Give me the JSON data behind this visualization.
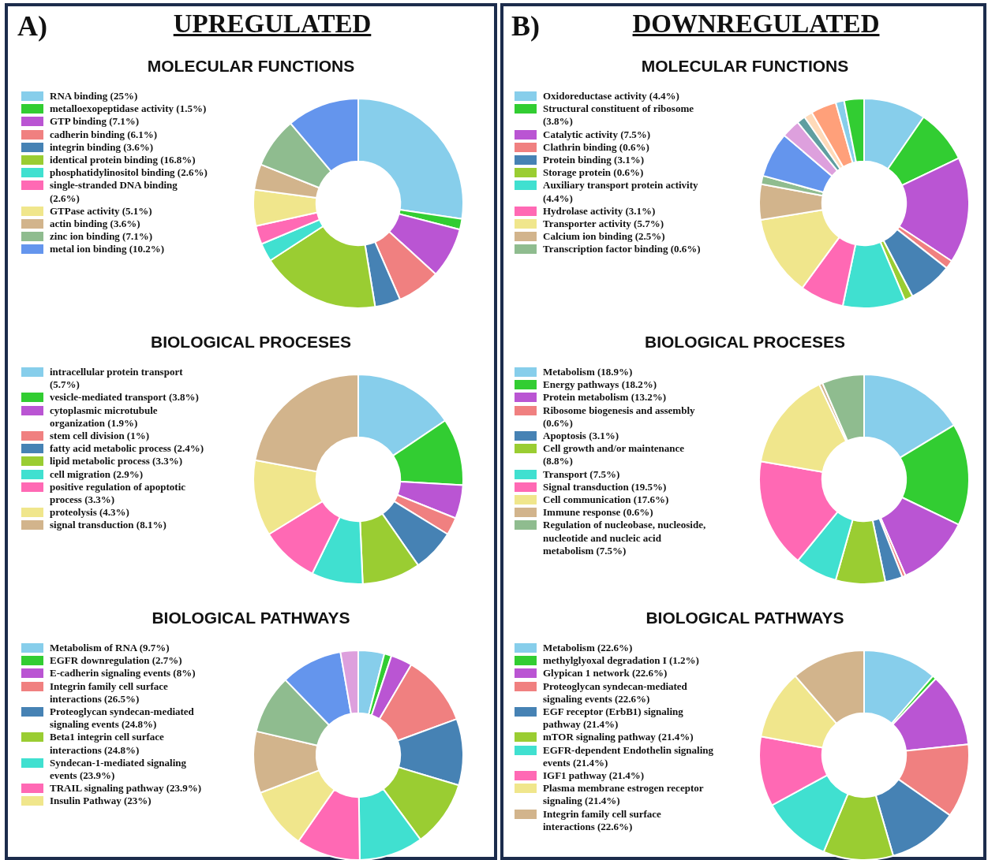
{
  "chart_data": [
    {
      "type": "donut",
      "title": "MOLECULAR FUNCTIONS",
      "annotations": [
        "A)",
        "UPREGULATED"
      ],
      "legend": "left",
      "categories": [
        "RNA binding (25%)",
        "metalloexopeptidase activity (1.5%)",
        "GTP binding (7.1%)",
        "cadherin binding (6.1%)",
        "integrin binding (3.6%)",
        "identical protein binding (16.8%)",
        "phosphatidylinositol binding (2.6%)",
        "single-stranded DNA binding (2.6%)",
        "GTPase activity (5.1%)",
        "actin binding (3.6%)",
        "zinc ion binding (7.1%)",
        "metal ion binding (10.2%)"
      ],
      "values": [
        25,
        1.5,
        7.1,
        6.1,
        3.6,
        16.8,
        2.6,
        2.6,
        5.1,
        3.6,
        7.1,
        10.2
      ],
      "colors": [
        "#87ceeb",
        "#32cd32",
        "#ba55d3",
        "#f08080",
        "#4682b4",
        "#9acd32",
        "#40e0d0",
        "#ff69b4",
        "#f0e68c",
        "#d2b48c",
        "#8fbc8f",
        "#6495ed"
      ]
    },
    {
      "type": "donut",
      "title": "MOLECULAR FUNCTIONS",
      "annotations": [
        "B)",
        "DOWNREGULATED"
      ],
      "legend": "left",
      "categories": [
        "Oxidoreductase activity (4.4%)",
        "Structural constituent of ribosome (3.8%)",
        "Catalytic activity (7.5%)",
        "Clathrin binding (0.6%)",
        "Protein binding (3.1%)",
        "Storage protein (0.6%)",
        "Auxiliary transport protein activity (4.4%)",
        "Hydrolase activity (3.1%)",
        "Transporter activity (5.7%)",
        "Calcium ion binding (2.5%)",
        "Transcription factor binding (0.6%)",
        null,
        null,
        null,
        null,
        null,
        null,
        null
      ],
      "values": [
        4.4,
        3.8,
        7.5,
        0.6,
        3.1,
        0.6,
        4.4,
        3.1,
        5.7,
        2.5,
        0.6,
        3.2,
        1.3,
        0.6,
        0.6,
        1.8,
        0.6,
        1.4
      ],
      "colors": [
        "#87ceeb",
        "#32cd32",
        "#ba55d3",
        "#f08080",
        "#4682b4",
        "#9acd32",
        "#40e0d0",
        "#ff69b4",
        "#f0e68c",
        "#d2b48c",
        "#8fbc8f",
        "#6495ed",
        "#dda0dd",
        "#5f9ea0",
        "#ffdab9",
        "#ffa07a",
        "#87ceeb",
        "#32cd32"
      ]
    },
    {
      "type": "donut",
      "title": "BIOLOGICAL PROCESES",
      "legend": "left",
      "categories": [
        "intracellular protein transport (5.7%)",
        "vesicle-mediated transport (3.8%)",
        "cytoplasmic microtubule organization (1.9%)",
        "stem cell division (1%)",
        "fatty acid metabolic process (2.4%)",
        "lipid metabolic process (3.3%)",
        "cell migration (2.9%)",
        "positive regulation of apoptotic process (3.3%)",
        "proteolysis (4.3%)",
        "signal transduction (8.1%)"
      ],
      "values": [
        5.7,
        3.8,
        1.9,
        1,
        2.4,
        3.3,
        2.9,
        3.3,
        4.3,
        8.1
      ],
      "colors": [
        "#87ceeb",
        "#32cd32",
        "#ba55d3",
        "#f08080",
        "#4682b4",
        "#9acd32",
        "#40e0d0",
        "#ff69b4",
        "#f0e68c",
        "#d2b48c"
      ]
    },
    {
      "type": "donut",
      "title": "BIOLOGICAL PROCESES",
      "legend": "left",
      "categories": [
        "Metabolism (18.9%)",
        "Energy pathways (18.2%)",
        "Protein metabolism (13.2%)",
        "Ribosome biogenesis and assembly (0.6%)",
        "Apoptosis (3.1%)",
        "Cell growth and/or maintenance (8.8%)",
        "Transport (7.5%)",
        "Signal transduction (19.5%)",
        "Cell communication (17.6%)",
        "Immune response (0.6%)",
        "Regulation of nucleobase, nucleoside, nucleotide and nucleic acid metabolism (7.5%)"
      ],
      "values": [
        18.9,
        18.2,
        13.2,
        0.6,
        3.1,
        8.8,
        7.5,
        19.5,
        17.6,
        0.6,
        7.5
      ],
      "colors": [
        "#87ceeb",
        "#32cd32",
        "#ba55d3",
        "#f08080",
        "#4682b4",
        "#9acd32",
        "#40e0d0",
        "#ff69b4",
        "#f0e68c",
        "#d2b48c",
        "#8fbc8f"
      ]
    },
    {
      "type": "donut",
      "title": "BIOLOGICAL PATHWAYS",
      "legend": "left",
      "categories": [
        "Metabolism of RNA (9.7%)",
        "EGFR downregulation (2.7%)",
        "E-cadherin signaling events (8%)",
        "Integrin family cell surface interactions (26.5%)",
        "Proteoglycan syndecan-mediated signaling events (24.8%)",
        "Beta1 integrin cell surface interactions (24.8%)",
        "Syndecan-1-mediated signaling events (23.9%)",
        "TRAIL signaling pathway (23.9%)",
        "Insulin Pathway (23%)",
        null,
        null,
        null,
        null
      ],
      "values": [
        9.7,
        2.7,
        8,
        26.5,
        24.8,
        24.8,
        23.9,
        23.9,
        23,
        23,
        22,
        23,
        6.6
      ],
      "colors": [
        "#87ceeb",
        "#32cd32",
        "#ba55d3",
        "#f08080",
        "#4682b4",
        "#9acd32",
        "#40e0d0",
        "#ff69b4",
        "#f0e68c",
        "#d2b48c",
        "#8fbc8f",
        "#6495ed",
        "#dda0dd"
      ]
    },
    {
      "type": "donut",
      "title": "BIOLOGICAL PATHWAYS",
      "legend": "left",
      "categories": [
        "Metabolism (22.6%)",
        "methylglyoxal degradation I (1.2%)",
        "Glypican 1 network (22.6%)",
        "Proteoglycan syndecan-mediated signaling events (22.6%)",
        "EGF receptor (ErbB1) signaling pathway (21.4%)",
        "mTOR signaling pathway (21.4%)",
        "EGFR-dependent Endothelin signaling events (21.4%)",
        "IGF1 pathway (21.4%)",
        "Plasma membrane estrogen receptor signaling (21.4%)",
        "Integrin family cell surface interactions (22.6%)"
      ],
      "values": [
        22.6,
        1.2,
        22.6,
        22.6,
        21.4,
        21.4,
        21.4,
        21.4,
        21.4,
        22.6
      ],
      "colors": [
        "#87ceeb",
        "#32cd32",
        "#ba55d3",
        "#f08080",
        "#4682b4",
        "#9acd32",
        "#40e0d0",
        "#ff69b4",
        "#f0e68c",
        "#d2b48c"
      ]
    }
  ]
}
